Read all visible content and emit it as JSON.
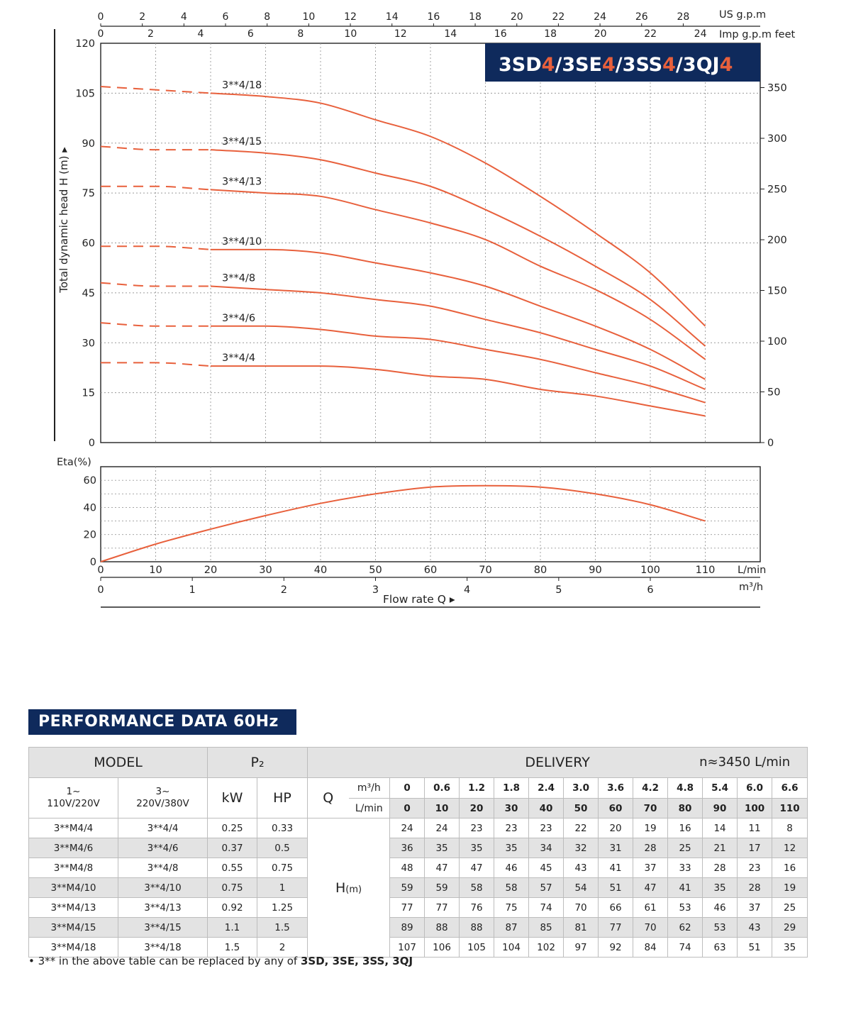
{
  "chart_data": [
    {
      "type": "line",
      "title_parts": [
        {
          "text": "3SD",
          "hi": false
        },
        {
          "text": "4",
          "hi": true
        },
        {
          "text": "/3SE",
          "hi": false
        },
        {
          "text": "4",
          "hi": true
        },
        {
          "text": "/3SS",
          "hi": false
        },
        {
          "text": "4",
          "hi": true
        },
        {
          "text": "/3QJ",
          "hi": false
        },
        {
          "text": "4",
          "hi": true
        }
      ],
      "ylabel": "Total dynamic head H (m) ▸",
      "y_right_label": "feet",
      "xlabel": "Flow rate    Q ▸",
      "x_unit_lmin": "L/min",
      "x_unit_m3h": "m³/h",
      "x_top_us_label": "US g.p.m",
      "x_top_imp_label": "Imp g.p.m",
      "xlim_lmin": [
        0,
        120
      ],
      "ylim": [
        0,
        120
      ],
      "x_ticks_lmin": [
        0,
        10,
        20,
        30,
        40,
        50,
        60,
        70,
        80,
        90,
        100,
        110
      ],
      "x_ticks_m3h": [
        0,
        1,
        2,
        3,
        4,
        5,
        6
      ],
      "x_ticks_us": [
        0,
        2,
        4,
        6,
        8,
        10,
        12,
        14,
        16,
        18,
        20,
        22,
        24,
        26,
        28
      ],
      "x_ticks_imp": [
        0,
        2,
        4,
        6,
        8,
        10,
        12,
        14,
        16,
        18,
        20,
        22,
        24
      ],
      "y_ticks": [
        0,
        15,
        30,
        45,
        60,
        75,
        90,
        105,
        120
      ],
      "y_ticks_feet": [
        0,
        50,
        100,
        150,
        200,
        250,
        300,
        350
      ],
      "grid": true,
      "x": [
        0,
        10,
        20,
        30,
        40,
        50,
        60,
        70,
        80,
        90,
        100,
        110
      ],
      "dashed_until_x": 20,
      "series": [
        {
          "name": "3**4/18",
          "values": [
            107,
            106,
            105,
            104,
            102,
            97,
            92,
            84,
            74,
            63,
            51,
            35
          ]
        },
        {
          "name": "3**4/15",
          "values": [
            89,
            88,
            88,
            87,
            85,
            81,
            77,
            70,
            62,
            53,
            43,
            29
          ]
        },
        {
          "name": "3**4/13",
          "values": [
            77,
            77,
            76,
            75,
            74,
            70,
            66,
            61,
            53,
            46,
            37,
            25
          ]
        },
        {
          "name": "3**4/10",
          "values": [
            59,
            59,
            58,
            58,
            57,
            54,
            51,
            47,
            41,
            35,
            28,
            19
          ]
        },
        {
          "name": "3**4/8",
          "values": [
            48,
            47,
            47,
            46,
            45,
            43,
            41,
            37,
            33,
            28,
            23,
            16
          ]
        },
        {
          "name": "3**4/6",
          "values": [
            36,
            35,
            35,
            35,
            34,
            32,
            31,
            28,
            25,
            21,
            17,
            12
          ]
        },
        {
          "name": "3**4/4",
          "values": [
            24,
            24,
            23,
            23,
            23,
            22,
            20,
            19,
            16,
            14,
            11,
            8
          ]
        }
      ],
      "colors": {
        "curve": "#e8603c",
        "title_bg": "#0f2a5c",
        "title_text": "#ffffff",
        "title_hi": "#e8603c",
        "grid": "#9a9a9a"
      }
    },
    {
      "type": "line",
      "ylabel": "Eta(%)",
      "ylim": [
        0,
        70
      ],
      "y_ticks": [
        0,
        20,
        40,
        60
      ],
      "grid": true,
      "x": [
        0,
        10,
        20,
        30,
        40,
        50,
        60,
        70,
        80,
        90,
        100,
        110
      ],
      "series": [
        {
          "values": [
            0,
            13,
            24,
            34,
            43,
            50,
            55,
            56,
            55,
            50,
            42,
            30
          ]
        }
      ]
    }
  ],
  "table": {
    "heading": "PERFORMANCE DATA 60Hz",
    "model_label": "MODEL",
    "p2_label": "P₂",
    "delivery_label": "DELIVERY",
    "rpm_label": "n≈3450 L/min",
    "phase1_label": "1~\n110V/220V",
    "phase3_label": "3~\n220V/380V",
    "kw_label": "kW",
    "hp_label": "HP",
    "q_label": "Q",
    "m3h_unit": "m³/h",
    "lmin_unit": "L/min",
    "h_label": "H",
    "h_unit": "(m)",
    "m3h_values": [
      "0",
      "0.6",
      "1.2",
      "1.8",
      "2.4",
      "3.0",
      "3.6",
      "4.2",
      "4.8",
      "5.4",
      "6.0",
      "6.6"
    ],
    "lmin_values": [
      "0",
      "10",
      "20",
      "30",
      "40",
      "50",
      "60",
      "70",
      "80",
      "90",
      "100",
      "110"
    ],
    "rows": [
      {
        "m1": "3**M4/4",
        "m3": "3**4/4",
        "kw": "0.25",
        "hp": "0.33",
        "h": [
          "24",
          "24",
          "23",
          "23",
          "23",
          "22",
          "20",
          "19",
          "16",
          "14",
          "11",
          "8"
        ]
      },
      {
        "m1": "3**M4/6",
        "m3": "3**4/6",
        "kw": "0.37",
        "hp": "0.5",
        "h": [
          "36",
          "35",
          "35",
          "35",
          "34",
          "32",
          "31",
          "28",
          "25",
          "21",
          "17",
          "12"
        ]
      },
      {
        "m1": "3**M4/8",
        "m3": "3**4/8",
        "kw": "0.55",
        "hp": "0.75",
        "h": [
          "48",
          "47",
          "47",
          "46",
          "45",
          "43",
          "41",
          "37",
          "33",
          "28",
          "23",
          "16"
        ]
      },
      {
        "m1": "3**M4/10",
        "m3": "3**4/10",
        "kw": "0.75",
        "hp": "1",
        "h": [
          "59",
          "59",
          "58",
          "58",
          "57",
          "54",
          "51",
          "47",
          "41",
          "35",
          "28",
          "19"
        ]
      },
      {
        "m1": "3**M4/13",
        "m3": "3**4/13",
        "kw": "0.92",
        "hp": "1.25",
        "h": [
          "77",
          "77",
          "76",
          "75",
          "74",
          "70",
          "66",
          "61",
          "53",
          "46",
          "37",
          "25"
        ]
      },
      {
        "m1": "3**M4/15",
        "m3": "3**4/15",
        "kw": "1.1",
        "hp": "1.5",
        "h": [
          "89",
          "88",
          "88",
          "87",
          "85",
          "81",
          "77",
          "70",
          "62",
          "53",
          "43",
          "29"
        ]
      },
      {
        "m1": "3**M4/18",
        "m3": "3**4/18",
        "kw": "1.5",
        "hp": "2",
        "h": [
          "107",
          "106",
          "105",
          "104",
          "102",
          "97",
          "92",
          "84",
          "74",
          "63",
          "51",
          "35"
        ]
      }
    ],
    "footnote_prefix": "• 3** in the above table can be replaced by any of ",
    "footnote_models": "3SD, 3SE, 3SS, 3QJ",
    "shade_color": "#e3e3e3"
  }
}
